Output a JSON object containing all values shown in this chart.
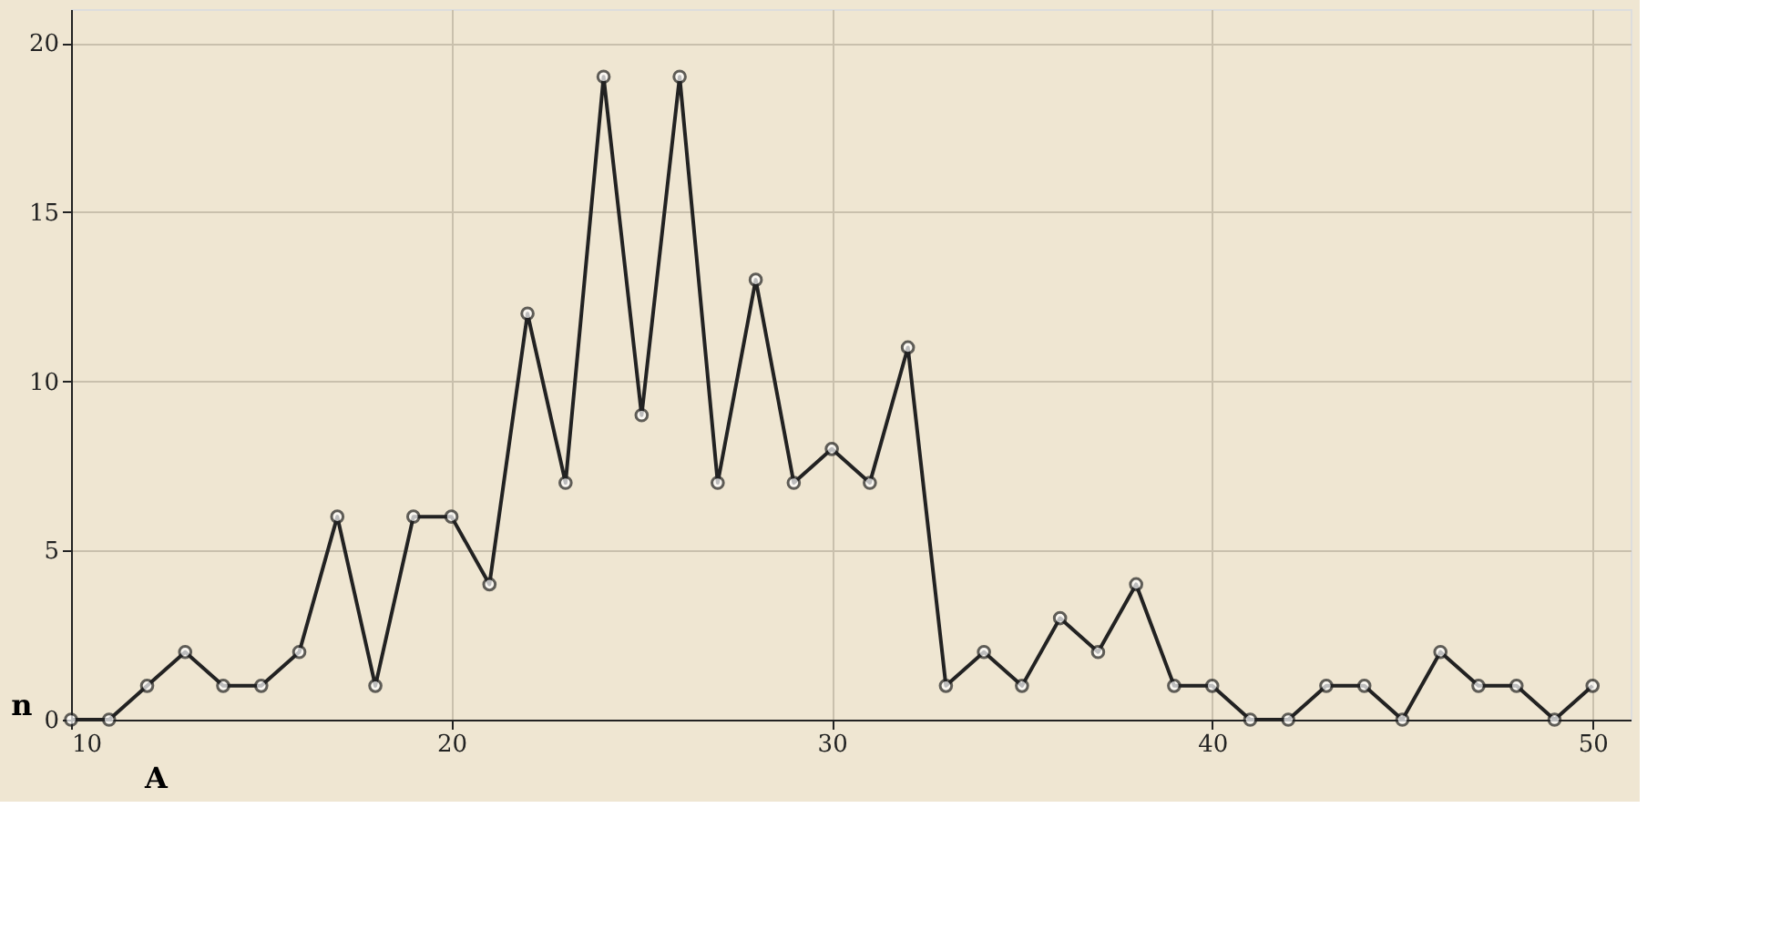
{
  "chart_data": {
    "type": "line",
    "xlabel": "A",
    "ylabel": "n",
    "x": [
      10,
      11,
      12,
      13,
      14,
      15,
      16,
      17,
      18,
      19,
      20,
      21,
      22,
      23,
      24,
      25,
      26,
      27,
      28,
      29,
      30,
      31,
      32,
      33,
      34,
      35,
      36,
      37,
      38,
      39,
      40,
      41,
      42,
      43,
      44,
      45,
      46,
      47,
      48,
      49,
      50
    ],
    "series": [
      {
        "color": "#222222",
        "values": [
          0,
          0,
          1,
          2,
          1,
          1,
          2,
          6,
          1,
          6,
          6,
          4,
          12,
          7,
          19,
          9,
          19,
          7,
          13,
          7,
          8,
          7,
          11,
          1,
          2,
          1,
          3,
          2,
          4,
          1,
          1,
          0,
          0,
          1,
          1,
          0,
          2,
          1,
          1,
          0,
          1
        ]
      }
    ],
    "xlim": [
      10,
      51
    ],
    "ylim": [
      0,
      21
    ],
    "xticks": [
      10,
      20,
      30,
      40,
      50
    ],
    "yticks": [
      0,
      5,
      10,
      15,
      20
    ],
    "grid": true,
    "marker": "circle",
    "line_style": "solid"
  }
}
